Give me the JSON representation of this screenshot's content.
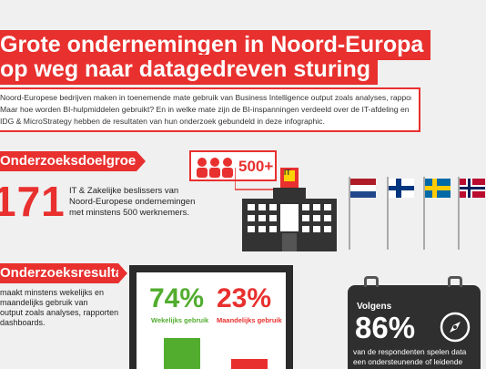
{
  "title": {
    "line1": "Grote ondernemingen in Noord-Europa",
    "line2": "op weg naar datagedreven sturing"
  },
  "intro": {
    "line1": "Noord-Europese bedrijven maken in toenemende mate gebruik van Business Intelligence output zoals analyses, rapporten en dashboards.",
    "line2": "Maar hoe worden BI-hulpmiddelen gebruikt? En in welke mate zijn de BI-inspanningen verdeeld over de IT-afdeling en de gebruikers?",
    "line3": "IDG & MicroStrategy hebben de resultaten van hun onderzoek gebundeld in deze infographic."
  },
  "doelgroep": {
    "heading": "Onderzoeksdoelgroep",
    "number": "171",
    "desc_line1": "IT & Zakelijke beslissers van",
    "desc_line2": "Noord-Europese ondernemingen",
    "desc_line3": "met minstens 500 werknemers.",
    "badge": "500+",
    "building_sign": "IT"
  },
  "resultaten": {
    "heading": "Onderzoeksresultaten",
    "desc_line1": "maakt minstens wekelijks en",
    "desc_line2": "maandelijks gebruik van",
    "desc_line3": "output zoals analyses, rapporten",
    "desc_line4": "dashboards.",
    "weekly_pct": "74%",
    "weekly_label": "Wekelijks gebruik",
    "monthly_pct": "23%",
    "monthly_label": "Maandelijks gebruik",
    "weekly_value": 74,
    "monthly_value": 23
  },
  "case": {
    "intro": "Volgens",
    "pct": "86%",
    "line1": "van de respondenten spelen data",
    "line2": "een ondersteunende of leidende"
  },
  "colors": {
    "red": "#e8302e",
    "green": "#52ad2f",
    "dark": "#333333"
  }
}
